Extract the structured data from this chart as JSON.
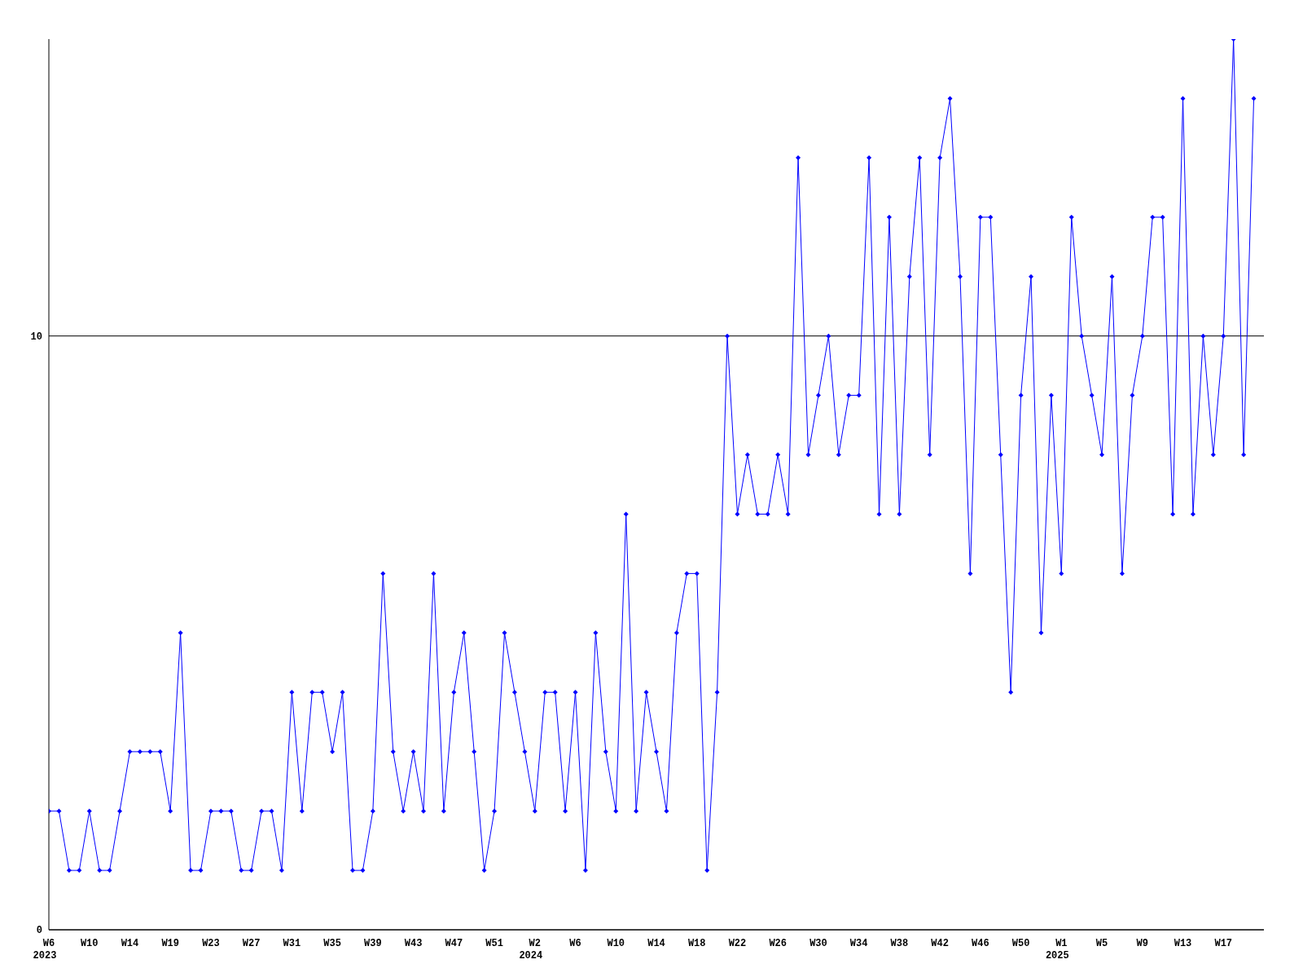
{
  "chart_data": {
    "type": "line",
    "categories": [
      "W6\n2023",
      null,
      null,
      null,
      "W10",
      null,
      null,
      null,
      "W14",
      null,
      null,
      null,
      "W19",
      null,
      null,
      null,
      "W23",
      null,
      null,
      null,
      "W27",
      null,
      null,
      null,
      "W31",
      null,
      null,
      null,
      "W35",
      null,
      null,
      null,
      "W39",
      null,
      null,
      null,
      "W43",
      null,
      null,
      null,
      "W47",
      null,
      null,
      null,
      "W51",
      null,
      null,
      null,
      "W2\n2024",
      null,
      null,
      null,
      "W6",
      null,
      null,
      null,
      "W10",
      null,
      null,
      null,
      "W14",
      null,
      null,
      null,
      "W18",
      null,
      null,
      null,
      "W22",
      null,
      null,
      null,
      "W26",
      null,
      null,
      null,
      "W30",
      null,
      null,
      null,
      "W34",
      null,
      null,
      null,
      "W38",
      null,
      null,
      null,
      "W42",
      null,
      null,
      null,
      "W46",
      null,
      null,
      null,
      "W50",
      null,
      null,
      null,
      "W1\n2025",
      null,
      null,
      null,
      "W5",
      null,
      null,
      null,
      "W9",
      null,
      null,
      null,
      "W13",
      null,
      null,
      null,
      "W17",
      null,
      null,
      null,
      null
    ],
    "series": [
      {
        "color": "#0000ff",
        "values": [
          2,
          2,
          1,
          1,
          2,
          1,
          1,
          2,
          3,
          3,
          3,
          3,
          2,
          5,
          1,
          1,
          2,
          2,
          2,
          1,
          1,
          2,
          2,
          1,
          4,
          2,
          4,
          4,
          3,
          4,
          1,
          1,
          2,
          6,
          3,
          2,
          3,
          2,
          6,
          2,
          4,
          5,
          3,
          1,
          2,
          5,
          4,
          3,
          2,
          4,
          4,
          2,
          4,
          1,
          5,
          3,
          2,
          7,
          2,
          4,
          3,
          2,
          5,
          6,
          6,
          1,
          4,
          10,
          7,
          8,
          7,
          7,
          8,
          7,
          13,
          8,
          9,
          10,
          8,
          9,
          9,
          13,
          7,
          12,
          7,
          11,
          13,
          8,
          13,
          14,
          11,
          6,
          12,
          12,
          8,
          4,
          9,
          11,
          5,
          9,
          6,
          12,
          10,
          9,
          8,
          11,
          6,
          9,
          10,
          12,
          12,
          7,
          14,
          7,
          10,
          8,
          10,
          15,
          8,
          14,
          null
        ]
      }
    ],
    "ylim": [
      0,
      15
    ],
    "yticks": [
      0,
      10
    ],
    "grid": "y",
    "marker": "diamond",
    "line_style": "solid"
  }
}
